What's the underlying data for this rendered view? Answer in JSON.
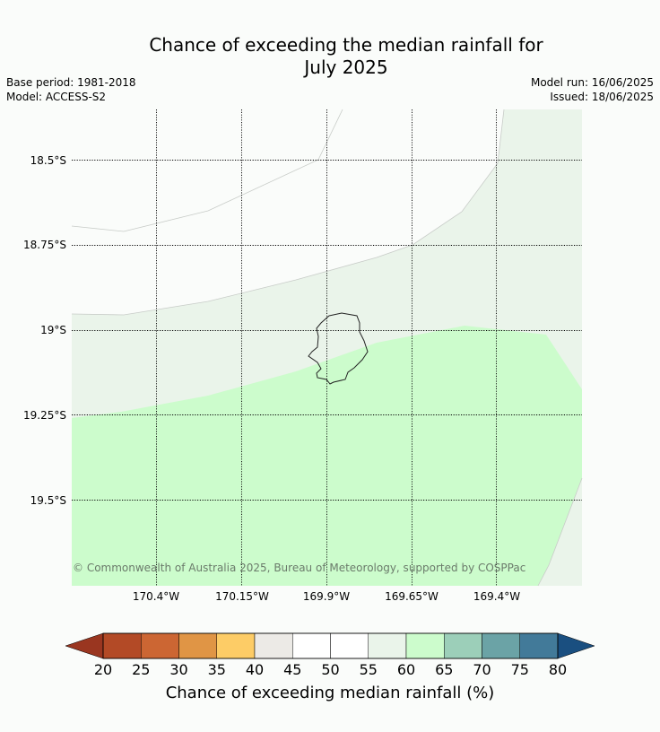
{
  "title": {
    "line1": "Chance of exceeding the median rainfall for",
    "line2": "July 2025"
  },
  "meta": {
    "base_period": "Base period: 1981-2018",
    "model": "Model: ACCESS-S2",
    "model_run": "Model run: 16/06/2025",
    "issued": "Issued: 18/06/2025"
  },
  "map": {
    "lat_labels": [
      "18.5°S",
      "18.75°S",
      "19°S",
      "19.25°S",
      "19.5°S"
    ],
    "lon_labels": [
      "170.4°W",
      "170.15°W",
      "169.9°W",
      "169.65°W",
      "169.4°W"
    ],
    "copyright": "© Commonwealth of Australia 2025, Bureau of Meteorology, supported by COSPPac",
    "island_outline": "Niue coastline",
    "zone_colors": {
      "55-60": "#eaf4ea",
      "60-65": "#ccfccc",
      "45-55": "#ffffff"
    }
  },
  "colorbar": {
    "ticks": [
      "20",
      "25",
      "30",
      "35",
      "40",
      "45",
      "50",
      "55",
      "60",
      "65",
      "70",
      "75",
      "80"
    ],
    "colors": [
      "#b34a26",
      "#cc6633",
      "#e09545",
      "#fdcc66",
      "#eceae6",
      "#ffffff",
      "#ffffff",
      "#eaf4ea",
      "#ccfccc",
      "#9ccfb9",
      "#6ba3a6",
      "#427a99"
    ],
    "under_color": "#9a3620",
    "over_color": "#1a4f80",
    "label": "Chance of exceeding median rainfall (%)"
  }
}
